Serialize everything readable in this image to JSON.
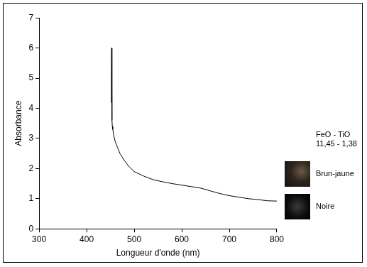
{
  "chart_data": {
    "type": "line",
    "x_label": "Longueur d'onde (nm)",
    "y_label": "Absorbance",
    "annotations": [
      "FeO - TiO",
      "11,45 - 1,38",
      "Brun-jaune",
      "Noire"
    ],
    "color": "#000000",
    "grid": false,
    "x": [
      451,
      452,
      452.5,
      453,
      453.5,
      454,
      455,
      457,
      460,
      465,
      470,
      480,
      490,
      500,
      520,
      540,
      560,
      580,
      600,
      620,
      640,
      660,
      680,
      700,
      720,
      740,
      760,
      780,
      800
    ],
    "values": [
      4.2,
      4.8,
      6.0,
      4.5,
      3.6,
      3.4,
      3.3,
      3.1,
      2.9,
      2.7,
      2.5,
      2.25,
      2.05,
      1.9,
      1.75,
      1.63,
      1.56,
      1.5,
      1.45,
      1.4,
      1.35,
      1.26,
      1.17,
      1.1,
      1.05,
      1.0,
      0.97,
      0.93,
      0.92
    ],
    "xlim": [
      300,
      800
    ],
    "xticks": [
      300,
      400,
      500,
      600,
      700,
      800
    ],
    "ylim": [
      0,
      7
    ],
    "yticks": [
      0,
      1,
      2,
      3,
      4,
      5,
      6,
      7
    ]
  }
}
